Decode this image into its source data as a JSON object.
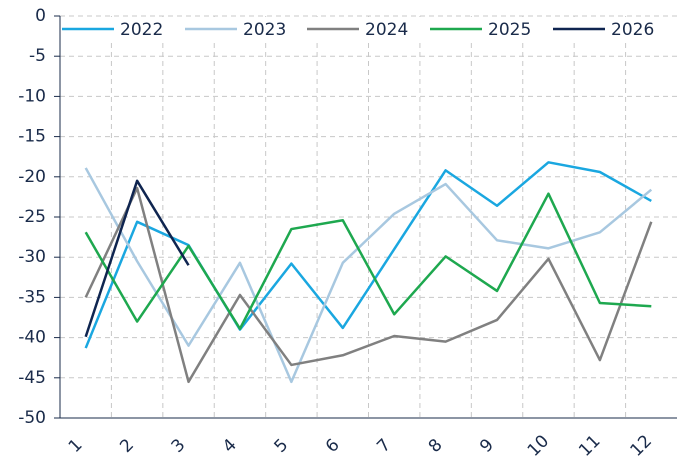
{
  "chart_data": {
    "type": "line",
    "categories": [
      "1",
      "2",
      "3",
      "4",
      "5",
      "6",
      "7",
      "8",
      "9",
      "10",
      "11",
      "12"
    ],
    "series": [
      {
        "name": "2022",
        "color": "#1aa7e0",
        "values": [
          -41.3,
          -25.6,
          -28.5,
          -39,
          -30.8,
          -38.8,
          -29,
          -19.2,
          -23.6,
          -18.2,
          -19.4,
          -23
        ]
      },
      {
        "name": "2023",
        "color": "#a8c8e0",
        "values": [
          -18.9,
          -30.5,
          -41,
          -30.7,
          -45.5,
          -30.7,
          -24.6,
          -20.9,
          -27.9,
          -28.9,
          -26.9,
          -21.6
        ]
      },
      {
        "name": "2024",
        "color": "#808080",
        "values": [
          -35,
          -21.4,
          -45.5,
          -34.7,
          -43.4,
          -42.2,
          -39.8,
          -40.5,
          -37.8,
          -30.2,
          -42.8,
          -25.6
        ]
      },
      {
        "name": "2025",
        "color": "#1ea84f",
        "values": [
          -26.9,
          -38,
          -28.6,
          -38.9,
          -26.5,
          -25.4,
          -37.1,
          -29.9,
          -34.2,
          -22.1,
          -35.7,
          -36.1
        ]
      },
      {
        "name": "2026",
        "color": "#0f2550",
        "values": [
          -39.9,
          -20.5,
          -31,
          null,
          null,
          null,
          null,
          null,
          null,
          null,
          null,
          null
        ]
      }
    ],
    "ylim": [
      -50,
      0
    ],
    "yticks": [
      0,
      -5,
      -10,
      -15,
      -20,
      -25,
      -30,
      -35,
      -40,
      -45,
      -50
    ],
    "grid": true
  }
}
